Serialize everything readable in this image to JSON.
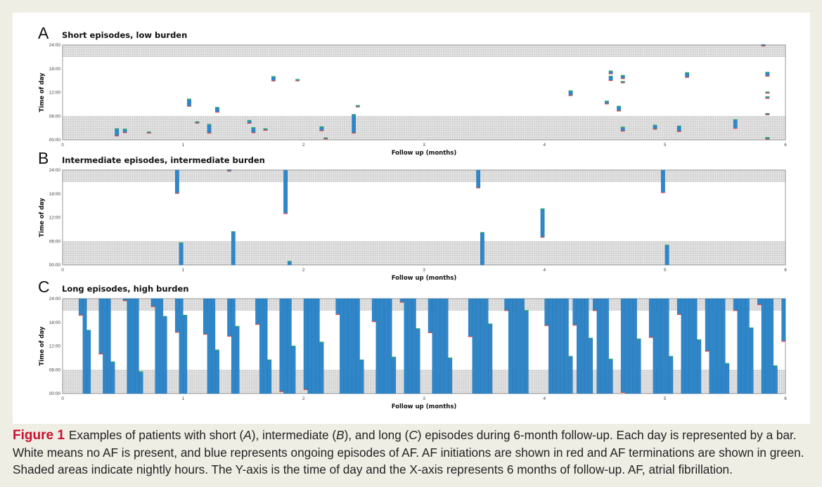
{
  "colors": {
    "episode": "#2f87c9",
    "episode_border": "#1f6aa8",
    "initiation": "#e8463c",
    "termination": "#20ad5a",
    "caption_label": "#c8102e"
  },
  "chart_data": [
    {
      "type": "bar",
      "letter": "A",
      "title": "Short episodes, low burden",
      "xlabel": "Follow up (months)",
      "ylabel": "Time of day",
      "xlim": [
        0,
        6
      ],
      "ylim": [
        0,
        24
      ],
      "x_ticks": [
        "0",
        "1",
        "2",
        "3",
        "4",
        "5",
        "6"
      ],
      "y_ticks": [
        "24:00",
        "18:00",
        "12:00",
        "06:00",
        "00:00"
      ],
      "shaded_hours": [
        [
          0,
          6
        ],
        [
          21,
          24
        ]
      ],
      "episodes": [
        {
          "start": [
            0.44,
            1.0
          ],
          "end": [
            0.44,
            2.8
          ]
        },
        {
          "start": [
            0.5,
            1.8
          ],
          "end": [
            0.5,
            2.7
          ]
        },
        {
          "start": [
            0.73,
            1.7
          ],
          "end": [
            0.73,
            2.0
          ]
        },
        {
          "start": [
            1.06,
            8.5
          ],
          "end": [
            1.06,
            10.3
          ]
        },
        {
          "start": [
            1.1,
            4.3
          ],
          "end": [
            1.1,
            4.5
          ]
        },
        {
          "start": [
            1.23,
            1.7
          ],
          "end": [
            1.23,
            3.9
          ]
        },
        {
          "start": [
            1.29,
            7.0
          ],
          "end": [
            1.29,
            8.2
          ]
        },
        {
          "start": [
            1.55,
            4.2
          ],
          "end": [
            1.55,
            4.9
          ]
        },
        {
          "start": [
            1.59,
            1.8
          ],
          "end": [
            1.59,
            3.1
          ]
        },
        {
          "start": [
            1.69,
            2.4
          ],
          "end": [
            1.69,
            2.8
          ]
        },
        {
          "start": [
            1.75,
            14.9
          ],
          "end": [
            1.75,
            16.0
          ]
        },
        {
          "start": [
            1.95,
            15.0
          ],
          "end": [
            1.95,
            15.2
          ]
        },
        {
          "start": [
            2.14,
            2.3
          ],
          "end": [
            2.14,
            3.3
          ]
        },
        {
          "start": [
            2.18,
            0.2
          ],
          "end": [
            2.18,
            0.5
          ]
        },
        {
          "start": [
            2.41,
            1.7
          ],
          "end": [
            2.41,
            6.4
          ]
        },
        {
          "start": [
            2.44,
            8.4
          ],
          "end": [
            2.44,
            8.6
          ]
        },
        {
          "start": [
            4.21,
            11.2
          ],
          "end": [
            4.21,
            12.4
          ]
        },
        {
          "start": [
            4.51,
            9.1
          ],
          "end": [
            4.51,
            9.8
          ]
        },
        {
          "start": [
            4.54,
            16.7
          ],
          "end": [
            4.54,
            17.4
          ]
        },
        {
          "start": [
            4.54,
            15.0
          ],
          "end": [
            4.54,
            16.1
          ]
        },
        {
          "start": [
            4.61,
            7.3
          ],
          "end": [
            4.61,
            8.5
          ]
        },
        {
          "start": [
            4.64,
            15.5
          ],
          "end": [
            4.64,
            16.3
          ]
        },
        {
          "start": [
            4.64,
            14.5
          ],
          "end": [
            4.64,
            14.7
          ]
        },
        {
          "start": [
            4.64,
            2.2
          ],
          "end": [
            4.64,
            3.2
          ]
        },
        {
          "start": [
            4.93,
            2.7
          ],
          "end": [
            4.93,
            3.7
          ]
        },
        {
          "start": [
            5.13,
            2.1
          ],
          "end": [
            5.13,
            3.5
          ]
        },
        {
          "start": [
            5.19,
            15.8
          ],
          "end": [
            5.19,
            17.0
          ]
        },
        {
          "start": [
            5.59,
            2.9
          ],
          "end": [
            5.59,
            5.1
          ]
        },
        {
          "start": [
            5.86,
            16.1
          ],
          "end": [
            5.86,
            17.1
          ]
        },
        {
          "start": [
            5.86,
            11.8
          ],
          "end": [
            5.86,
            12.1
          ]
        },
        {
          "start": [
            5.86,
            10.5
          ],
          "end": [
            5.86,
            10.9
          ]
        },
        {
          "start": [
            5.86,
            6.4
          ],
          "end": [
            5.86,
            6.6
          ]
        },
        {
          "start": [
            5.86,
            0.1
          ],
          "end": [
            5.86,
            0.6
          ]
        },
        {
          "start": [
            5.83,
            23.8
          ],
          "end": [
            5.83,
            24.0
          ]
        }
      ]
    },
    {
      "type": "bar",
      "letter": "B",
      "title": "Intermediate episodes, intermediate burden",
      "xlabel": "Follow up (months)",
      "ylabel": "Time of day",
      "xlim": [
        0,
        6
      ],
      "ylim": [
        0,
        24
      ],
      "x_ticks": [
        "0",
        "1",
        "2",
        "3",
        "4",
        "5",
        "6"
      ],
      "y_ticks": [
        "24:00",
        "18:00",
        "12:00",
        "06:00",
        "00:00"
      ],
      "shaded_hours": [
        [
          0,
          6
        ],
        [
          21,
          24
        ]
      ],
      "episodes": [
        {
          "start": [
            0.96,
            18.1
          ],
          "end": [
            0.99,
            5.6
          ]
        },
        {
          "start": [
            1.38,
            23.8
          ],
          "end": [
            1.41,
            8.4
          ]
        },
        {
          "start": [
            1.85,
            13.0
          ],
          "end": [
            1.88,
            0.9
          ]
        },
        {
          "start": [
            3.45,
            19.5
          ],
          "end": [
            3.49,
            8.2
          ]
        },
        {
          "start": [
            3.98,
            7.0
          ],
          "end": [
            3.98,
            14.2
          ]
        },
        {
          "start": [
            4.99,
            18.3
          ],
          "end": [
            5.03,
            5.0
          ]
        }
      ]
    },
    {
      "type": "bar",
      "letter": "C",
      "title": "Long episodes, high burden",
      "xlabel": "Follow up (months)",
      "ylabel": "Time of day",
      "xlim": [
        0,
        6
      ],
      "ylim": [
        0,
        24
      ],
      "x_ticks": [
        "0",
        "1",
        "2",
        "3",
        "4",
        "5",
        "6"
      ],
      "y_ticks": [
        "24:00",
        "18:00",
        "12:00",
        "06:00",
        "00:00"
      ],
      "shaded_hours": [
        [
          0,
          6
        ],
        [
          21,
          24
        ]
      ],
      "episodes": [
        {
          "start": [
            0.15,
            19.8
          ],
          "end": [
            0.22,
            16.0
          ]
        },
        {
          "start": [
            0.32,
            10.0
          ],
          "end": [
            0.4,
            8.0
          ]
        },
        {
          "start": [
            0.52,
            23.5
          ],
          "end": [
            0.64,
            5.5
          ]
        },
        {
          "start": [
            0.75,
            22.0
          ],
          "end": [
            0.84,
            19.5
          ]
        },
        {
          "start": [
            0.95,
            15.5
          ],
          "end": [
            1.03,
            19.8
          ]
        },
        {
          "start": [
            1.17,
            15.0
          ],
          "end": [
            1.29,
            11.0
          ]
        },
        {
          "start": [
            1.37,
            14.5
          ],
          "end": [
            1.45,
            17.0
          ]
        },
        {
          "start": [
            1.6,
            17.5
          ],
          "end": [
            1.72,
            8.5
          ]
        },
        {
          "start": [
            1.8,
            0.5
          ],
          "end": [
            1.92,
            12.0
          ]
        },
        {
          "start": [
            2.03,
            1.0
          ],
          "end": [
            2.15,
            13.0
          ]
        },
        {
          "start": [
            2.29,
            20.0
          ],
          "end": [
            2.48,
            8.5
          ]
        },
        {
          "start": [
            2.59,
            18.2
          ],
          "end": [
            2.74,
            9.2
          ]
        },
        {
          "start": [
            2.81,
            23.1
          ],
          "end": [
            2.94,
            16.4
          ]
        },
        {
          "start": [
            3.04,
            15.4
          ],
          "end": [
            3.2,
            9.0
          ]
        },
        {
          "start": [
            3.37,
            14.4
          ],
          "end": [
            3.54,
            17.6
          ]
        },
        {
          "start": [
            3.67,
            21.0
          ],
          "end": [
            3.86,
            21.0
          ]
        },
        {
          "start": [
            4.0,
            17.2
          ],
          "end": [
            4.23,
            9.4
          ]
        },
        {
          "start": [
            4.26,
            17.3
          ],
          "end": [
            4.38,
            14.0
          ]
        },
        {
          "start": [
            4.43,
            21.0
          ],
          "end": [
            4.55,
            8.7
          ]
        },
        {
          "start": [
            4.66,
            0.3
          ],
          "end": [
            4.78,
            13.8
          ]
        },
        {
          "start": [
            4.88,
            14.2
          ],
          "end": [
            5.04,
            9.4
          ]
        },
        {
          "start": [
            5.11,
            20.0
          ],
          "end": [
            5.27,
            13.6
          ]
        },
        {
          "start": [
            5.35,
            10.7
          ],
          "end": [
            5.5,
            7.6
          ]
        },
        {
          "start": [
            5.57,
            21.0
          ],
          "end": [
            5.73,
            16.6
          ]
        },
        {
          "start": [
            5.77,
            22.5
          ],
          "end": [
            5.9,
            7.0
          ]
        },
        {
          "start": [
            5.97,
            13.2
          ],
          "end": [
            5.97,
            24.0
          ]
        }
      ]
    }
  ],
  "caption": {
    "label": "Figure 1",
    "lines": [
      [
        {
          "text": "Examples of patients with short ("
        },
        {
          "text": "A",
          "italic": true
        },
        {
          "text": "), intermediate ("
        },
        {
          "text": "B",
          "italic": true
        },
        {
          "text": "), and long ("
        },
        {
          "text": "C",
          "italic": true
        },
        {
          "text": ") episodes during 6-month follow-up. Each day is represented by a bar."
        }
      ],
      [
        {
          "text": "White means no AF is present, and blue represents ongoing episodes of AF. AF initiations are shown in red and AF terminations are shown in green."
        }
      ],
      [
        {
          "text": "Shaded areas indicate nightly hours. The Y-axis is the time of day and the X-axis represents 6 months of follow-up. AF, atrial fibrillation."
        }
      ]
    ]
  }
}
